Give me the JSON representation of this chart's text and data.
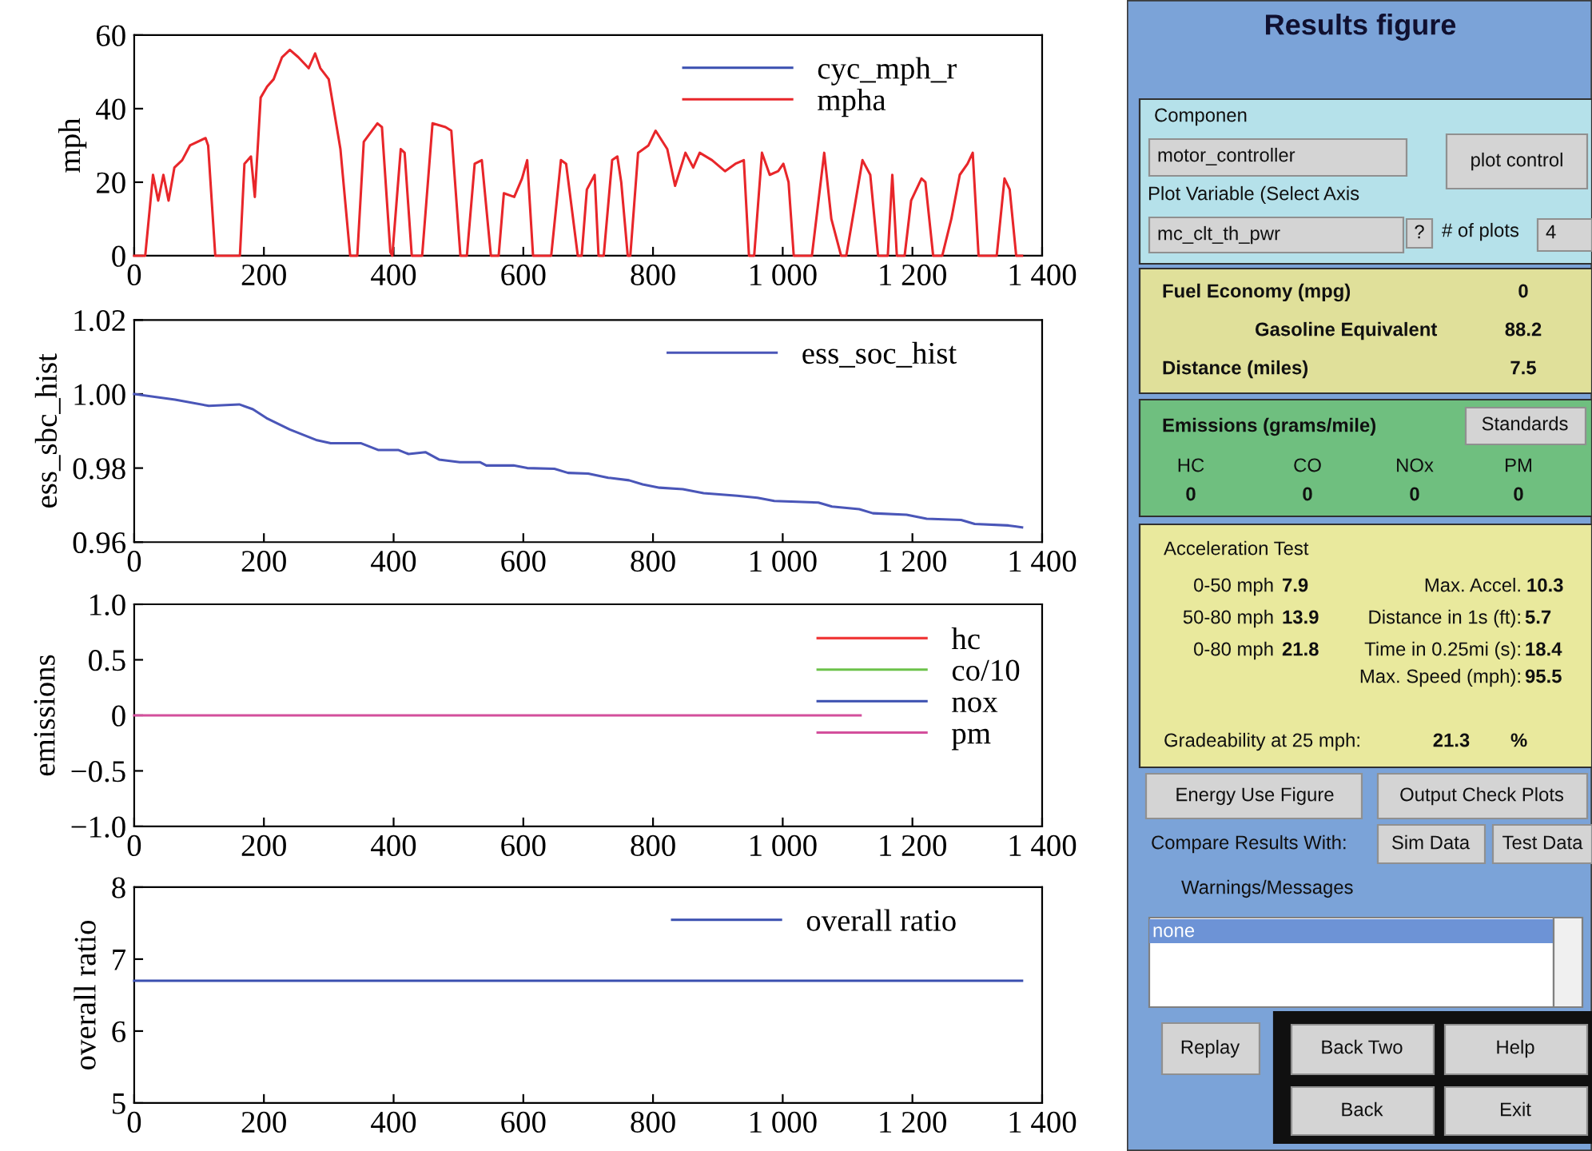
{
  "chart_data": [
    {
      "type": "line",
      "ylabel": "mph",
      "xlim": [
        0,
        1400
      ],
      "ylim": [
        0,
        60
      ],
      "xticks": [
        0,
        200,
        400,
        600,
        800,
        {
          "value": 1000,
          "label": "1 000"
        },
        {
          "value": 1200,
          "label": "1 200"
        },
        {
          "value": 1400,
          "label": "1 400"
        }
      ],
      "yticks": [
        0,
        20,
        40,
        60
      ],
      "grid": false,
      "legend": "top right",
      "marker": "none",
      "line_style": "solid",
      "series": [
        {
          "name": "cyc_mph_r",
          "color": "#3a4fb0"
        },
        {
          "name": "mpha",
          "color": "#e8262a",
          "x": [
            0,
            17,
            29,
            37,
            45,
            53,
            62,
            74,
            86,
            110,
            114,
            125,
            163,
            170,
            180,
            186,
            195,
            205,
            215,
            228,
            240,
            253,
            269,
            279,
            287,
            300,
            318,
            333,
            344,
            354,
            375,
            382,
            395,
            398,
            411,
            417,
            428,
            444,
            460,
            480,
            489,
            503,
            513,
            525,
            536,
            550,
            562,
            570,
            586,
            598,
            606,
            615,
            643,
            658,
            666,
            684,
            690,
            698,
            710,
            716,
            724,
            737,
            745,
            751,
            761,
            765,
            777,
            793,
            804,
            822,
            834,
            850,
            862,
            872,
            891,
            911,
            927,
            940,
            948,
            956,
            968,
            980,
            993,
            1001,
            1009,
            1017,
            1045,
            1064,
            1075,
            1090,
            1098,
            1123,
            1135,
            1147,
            1162,
            1169,
            1176,
            1188,
            1198,
            1214,
            1220,
            1232,
            1246,
            1260,
            1273,
            1285,
            1293,
            1302,
            1330,
            1342,
            1350,
            1360,
            1369
          ],
          "values": [
            0,
            0,
            22,
            15,
            22,
            15,
            24,
            26,
            30,
            32,
            30,
            0,
            0,
            25,
            27,
            16,
            43,
            46,
            48,
            54,
            56,
            54,
            51,
            55,
            51,
            48,
            29,
            0,
            0,
            31,
            36,
            35,
            1,
            0,
            29,
            28,
            0,
            0,
            36,
            35,
            34,
            0,
            0,
            25,
            26,
            0,
            0,
            17,
            16,
            21,
            26,
            0,
            0,
            26,
            25,
            0,
            0,
            18,
            22,
            0,
            0,
            26,
            27,
            20,
            0,
            0,
            28,
            30,
            34,
            29,
            19,
            28,
            24,
            28,
            26,
            23,
            25,
            26,
            0,
            0,
            28,
            22,
            23,
            25,
            20,
            0,
            0,
            28,
            10,
            0,
            0,
            26,
            22,
            0,
            0,
            22,
            0,
            0,
            15,
            21,
            20,
            0,
            0,
            10,
            22,
            25,
            28,
            0,
            0,
            21,
            18,
            0,
            0
          ]
        }
      ]
    },
    {
      "type": "line",
      "ylabel": "ess_sbc_hist",
      "xlim": [
        0,
        1400
      ],
      "ylim": [
        0.96,
        1.02
      ],
      "xticks": [
        0,
        200,
        400,
        600,
        800,
        {
          "value": 1000,
          "label": "1 000"
        },
        {
          "value": 1200,
          "label": "1 200"
        },
        {
          "value": 1400,
          "label": "1 400"
        }
      ],
      "yticks": [
        0.96,
        0.98,
        {
          "value": 1.0,
          "label": "1.00"
        },
        1.02
      ],
      "grid": false,
      "legend": "top right",
      "marker": "none",
      "line_style": "solid",
      "series": [
        {
          "name": "ess_soc_hist",
          "color": "#4a56b8",
          "x": [
            0,
            63,
            115,
            162,
            183,
            204,
            240,
            282,
            303,
            350,
            376,
            407,
            423,
            449,
            470,
            502,
            533,
            543,
            585,
            606,
            648,
            669,
            700,
            731,
            763,
            784,
            810,
            846,
            878,
            930,
            961,
            987,
            1055,
            1076,
            1118,
            1139,
            1191,
            1222,
            1275,
            1296,
            1348,
            1369
          ],
          "values": [
            1.0,
            0.9985,
            0.9968,
            0.9972,
            0.9959,
            0.9935,
            0.9904,
            0.9875,
            0.9867,
            0.9867,
            0.9849,
            0.9849,
            0.9838,
            0.9843,
            0.9823,
            0.9816,
            0.9816,
            0.9807,
            0.9807,
            0.98,
            0.9798,
            0.9787,
            0.9785,
            0.9774,
            0.9767,
            0.9756,
            0.9747,
            0.9743,
            0.9732,
            0.9725,
            0.972,
            0.9711,
            0.9707,
            0.9696,
            0.9689,
            0.9678,
            0.9674,
            0.9663,
            0.966,
            0.9649,
            0.9645,
            0.964
          ]
        }
      ]
    },
    {
      "type": "line",
      "ylabel": "emissions",
      "xlim": [
        0,
        1400
      ],
      "ylim": [
        -1.0,
        1.0
      ],
      "xticks": [
        0,
        200,
        400,
        600,
        800,
        {
          "value": 1000,
          "label": "1 000"
        },
        {
          "value": 1200,
          "label": "1 200"
        },
        {
          "value": 1400,
          "label": "1 400"
        }
      ],
      "yticks": [
        {
          "value": -1.0,
          "label": "−1.0"
        },
        {
          "value": -0.5,
          "label": "−0.5"
        },
        0,
        0.5,
        {
          "value": 1.0,
          "label": "1.0"
        }
      ],
      "grid": false,
      "legend": "right",
      "marker": "none",
      "line_style": "solid",
      "series": [
        {
          "name": "hc",
          "color": "#f03a3a"
        },
        {
          "name": "co/10",
          "color": "#6cc24a"
        },
        {
          "name": "nox",
          "color": "#3a4fb0"
        },
        {
          "name": "pm",
          "color": "#d34f9c",
          "x": [
            0,
            1120
          ],
          "values": [
            0,
            0
          ]
        }
      ]
    },
    {
      "type": "line",
      "ylabel": "overall ratio",
      "xlim": [
        0,
        1400
      ],
      "ylim": [
        5,
        8
      ],
      "xticks": [
        0,
        200,
        400,
        600,
        800,
        {
          "value": 1000,
          "label": "1 000"
        },
        {
          "value": 1200,
          "label": "1 200"
        },
        {
          "value": 1400,
          "label": "1 400"
        }
      ],
      "yticks": [
        5,
        6,
        7,
        8
      ],
      "grid": false,
      "legend": "top right",
      "marker": "none",
      "line_style": "solid",
      "series": [
        {
          "name": "overall ratio",
          "color": "#3a4fb0",
          "x": [
            0,
            1369
          ],
          "values": [
            6.7,
            6.7
          ]
        }
      ]
    },
    {
      "type": "other",
      "title": "Results figure",
      "annotations": [
        "Componen",
        "motor_controller",
        "plot control",
        "Plot Variable (Select Axis",
        "mc_clt_th_pwr",
        "?",
        "# of plots",
        "4",
        "Fuel Economy (mpg)",
        "0",
        "Gasoline Equivalent",
        "88.2",
        "Distance (miles)",
        "7.5",
        "Emissions (grams/mile)",
        "Standards",
        "HC",
        "CO",
        "NOx",
        "PM",
        "0",
        "0",
        "0",
        "0",
        "Acceleration Test",
        "0-50 mph",
        "7.9",
        "50-80 mph",
        "13.9",
        "0-80 mph",
        "21.8",
        "Max. Accel.",
        "10.3",
        "Distance in 1s (ft):",
        "5.7",
        "Time in 0.25mi (s):",
        "18.4",
        "Max. Speed (mph):",
        "95.5",
        "Gradeability at 25 mph:",
        "21.3",
        "%",
        "Energy Use Figure",
        "Output Check Plots",
        "Compare Results With:",
        "Sim Data",
        "Test Data",
        "Warnings/Messages",
        "none",
        "Replay",
        "Back Two",
        "Help",
        "Back",
        "Exit"
      ]
    }
  ]
}
